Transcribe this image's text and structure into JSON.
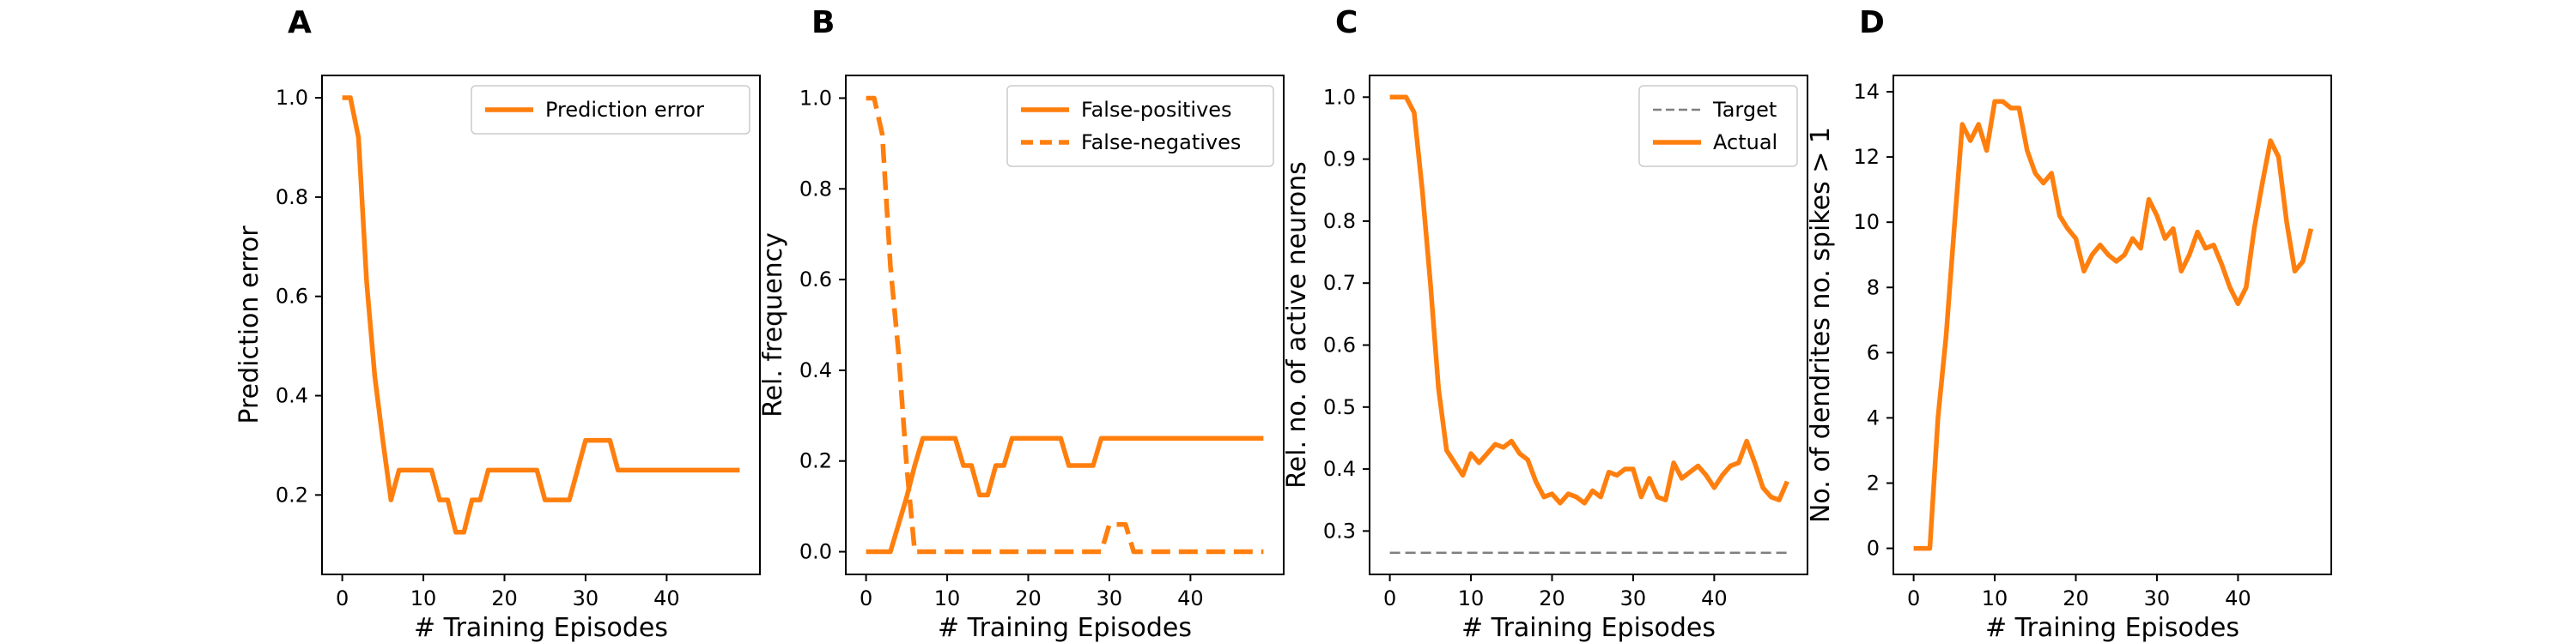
{
  "colors": {
    "accent": "#ff7f0e",
    "target": "#7f7f7f"
  },
  "x_axis_label": "# Training Episodes",
  "x_ticks": [
    0,
    10,
    20,
    30,
    40
  ],
  "chart_data": [
    {
      "type": "line",
      "panel": "A",
      "title": "",
      "xlabel": "# Training Episodes",
      "ylabel": "Prediction error",
      "xlim": [
        -2.5,
        51.5
      ],
      "ylim": [
        0.04,
        1.045
      ],
      "yticks": [
        0.2,
        0.4,
        0.6,
        0.8,
        1.0
      ],
      "ytick_labels": [
        "0.2",
        "0.4",
        "0.6",
        "0.8",
        "1.0"
      ],
      "legend": "upper right",
      "series": [
        {
          "name": "Prediction error",
          "style": "solid",
          "color": "#ff7f0e",
          "x": [
            0,
            1,
            2,
            3,
            4,
            5,
            6,
            7,
            8,
            9,
            10,
            11,
            12,
            13,
            14,
            15,
            16,
            17,
            18,
            19,
            20,
            21,
            22,
            23,
            24,
            25,
            26,
            27,
            28,
            29,
            30,
            31,
            32,
            33,
            34,
            35,
            36,
            37,
            38,
            39,
            40,
            41,
            42,
            43,
            44,
            45,
            46,
            47,
            48,
            49
          ],
          "y": [
            1.0,
            1.0,
            0.92,
            0.63,
            0.44,
            0.31,
            0.19,
            0.25,
            0.25,
            0.25,
            0.25,
            0.25,
            0.19,
            0.19,
            0.125,
            0.125,
            0.19,
            0.19,
            0.25,
            0.25,
            0.25,
            0.25,
            0.25,
            0.25,
            0.25,
            0.19,
            0.19,
            0.19,
            0.19,
            0.25,
            0.31,
            0.31,
            0.31,
            0.31,
            0.25,
            0.25,
            0.25,
            0.25,
            0.25,
            0.25,
            0.25,
            0.25,
            0.25,
            0.25,
            0.25,
            0.25,
            0.25,
            0.25,
            0.25,
            0.25
          ]
        }
      ]
    },
    {
      "type": "line",
      "panel": "B",
      "title": "",
      "xlabel": "# Training Episodes",
      "ylabel": "Rel. frequency",
      "xlim": [
        -2.5,
        51.5
      ],
      "ylim": [
        -0.05,
        1.05
      ],
      "yticks": [
        0.0,
        0.2,
        0.4,
        0.6,
        0.8,
        1.0
      ],
      "ytick_labels": [
        "0.0",
        "0.2",
        "0.4",
        "0.6",
        "0.8",
        "1.0"
      ],
      "legend": "upper right",
      "series": [
        {
          "name": "False-positives",
          "style": "solid",
          "color": "#ff7f0e",
          "x": [
            0,
            1,
            2,
            3,
            4,
            5,
            6,
            7,
            8,
            9,
            10,
            11,
            12,
            13,
            14,
            15,
            16,
            17,
            18,
            19,
            20,
            21,
            22,
            23,
            24,
            25,
            26,
            27,
            28,
            29,
            30,
            31,
            32,
            33,
            34,
            35,
            36,
            37,
            38,
            39,
            40,
            41,
            42,
            43,
            44,
            45,
            46,
            47,
            48,
            49
          ],
          "y": [
            0,
            0,
            0,
            0,
            0.06,
            0.12,
            0.19,
            0.25,
            0.25,
            0.25,
            0.25,
            0.25,
            0.19,
            0.19,
            0.125,
            0.125,
            0.19,
            0.19,
            0.25,
            0.25,
            0.25,
            0.25,
            0.25,
            0.25,
            0.25,
            0.19,
            0.19,
            0.19,
            0.19,
            0.25,
            0.25,
            0.25,
            0.25,
            0.25,
            0.25,
            0.25,
            0.25,
            0.25,
            0.25,
            0.25,
            0.25,
            0.25,
            0.25,
            0.25,
            0.25,
            0.25,
            0.25,
            0.25,
            0.25,
            0.25
          ]
        },
        {
          "name": "False-negatives",
          "style": "dashed",
          "color": "#ff7f0e",
          "x": [
            0,
            1,
            2,
            3,
            4,
            5,
            6,
            7,
            8,
            9,
            10,
            11,
            12,
            13,
            14,
            15,
            16,
            17,
            18,
            19,
            20,
            21,
            22,
            23,
            24,
            25,
            26,
            27,
            28,
            29,
            30,
            31,
            32,
            33,
            34,
            35,
            36,
            37,
            38,
            39,
            40,
            41,
            42,
            43,
            44,
            45,
            46,
            47,
            48,
            49
          ],
          "y": [
            1.0,
            1.0,
            0.92,
            0.63,
            0.44,
            0.19,
            0,
            0,
            0,
            0,
            0,
            0,
            0,
            0,
            0,
            0,
            0,
            0,
            0,
            0,
            0,
            0,
            0,
            0,
            0,
            0,
            0,
            0,
            0,
            0,
            0.06,
            0.06,
            0.06,
            0,
            0,
            0,
            0,
            0,
            0,
            0,
            0,
            0,
            0,
            0,
            0,
            0,
            0,
            0,
            0,
            0
          ]
        }
      ]
    },
    {
      "type": "line",
      "panel": "C",
      "title": "",
      "xlabel": "# Training Episodes",
      "ylabel": "Rel. no. of active neurons",
      "xlim": [
        -2.5,
        51.5
      ],
      "ylim": [
        0.23,
        1.035
      ],
      "yticks": [
        0.3,
        0.4,
        0.5,
        0.6,
        0.7,
        0.8,
        0.9,
        1.0
      ],
      "ytick_labels": [
        "0.3",
        "0.4",
        "0.5",
        "0.6",
        "0.7",
        "0.8",
        "0.9",
        "1.0"
      ],
      "legend": "upper right",
      "series": [
        {
          "name": "Target",
          "style": "dashed-thin",
          "color": "#7f7f7f",
          "x": [
            0,
            49
          ],
          "y": [
            0.265,
            0.265
          ]
        },
        {
          "name": "Actual",
          "style": "solid",
          "color": "#ff7f0e",
          "x": [
            0,
            1,
            2,
            3,
            4,
            5,
            6,
            7,
            8,
            9,
            10,
            11,
            12,
            13,
            14,
            15,
            16,
            17,
            18,
            19,
            20,
            21,
            22,
            23,
            24,
            25,
            26,
            27,
            28,
            29,
            30,
            31,
            32,
            33,
            34,
            35,
            36,
            37,
            38,
            39,
            40,
            41,
            42,
            43,
            44,
            45,
            46,
            47,
            48,
            49
          ],
          "y": [
            1.0,
            1.0,
            1.0,
            0.975,
            0.85,
            0.7,
            0.53,
            0.43,
            0.41,
            0.39,
            0.425,
            0.41,
            0.425,
            0.44,
            0.435,
            0.445,
            0.425,
            0.415,
            0.38,
            0.355,
            0.36,
            0.345,
            0.36,
            0.355,
            0.345,
            0.365,
            0.355,
            0.395,
            0.39,
            0.4,
            0.4,
            0.355,
            0.385,
            0.355,
            0.35,
            0.41,
            0.385,
            0.395,
            0.405,
            0.39,
            0.37,
            0.39,
            0.405,
            0.41,
            0.445,
            0.41,
            0.37,
            0.355,
            0.35,
            0.38
          ]
        }
      ]
    },
    {
      "type": "line",
      "panel": "D",
      "title": "",
      "xlabel": "# Training Episodes",
      "ylabel": "No. of dendrites no. spikes > 1",
      "xlim": [
        -2.5,
        51.5
      ],
      "ylim": [
        -0.8,
        14.5
      ],
      "yticks": [
        0,
        2,
        4,
        6,
        8,
        10,
        12,
        14
      ],
      "ytick_labels": [
        "0",
        "2",
        "4",
        "6",
        "8",
        "10",
        "12",
        "14"
      ],
      "legend": "none",
      "series": [
        {
          "name": "",
          "style": "solid",
          "color": "#ff7f0e",
          "x": [
            0,
            1,
            2,
            3,
            4,
            5,
            6,
            7,
            8,
            9,
            10,
            11,
            12,
            13,
            14,
            15,
            16,
            17,
            18,
            19,
            20,
            21,
            22,
            23,
            24,
            25,
            26,
            27,
            28,
            29,
            30,
            31,
            32,
            33,
            34,
            35,
            36,
            37,
            38,
            39,
            40,
            41,
            42,
            43,
            44,
            45,
            46,
            47,
            48,
            49
          ],
          "y": [
            0,
            0,
            0,
            4,
            6.5,
            9.8,
            13,
            12.5,
            13,
            12.2,
            13.7,
            13.7,
            13.5,
            13.5,
            12.2,
            11.5,
            11.2,
            11.5,
            10.2,
            9.8,
            9.5,
            8.5,
            9,
            9.3,
            9,
            8.8,
            9,
            9.5,
            9.2,
            10.7,
            10.2,
            9.5,
            9.8,
            8.5,
            9,
            9.7,
            9.2,
            9.3,
            8.7,
            8,
            7.5,
            8,
            9.8,
            11.2,
            12.5,
            12,
            10,
            8.5,
            8.8,
            9.8
          ]
        }
      ]
    }
  ]
}
